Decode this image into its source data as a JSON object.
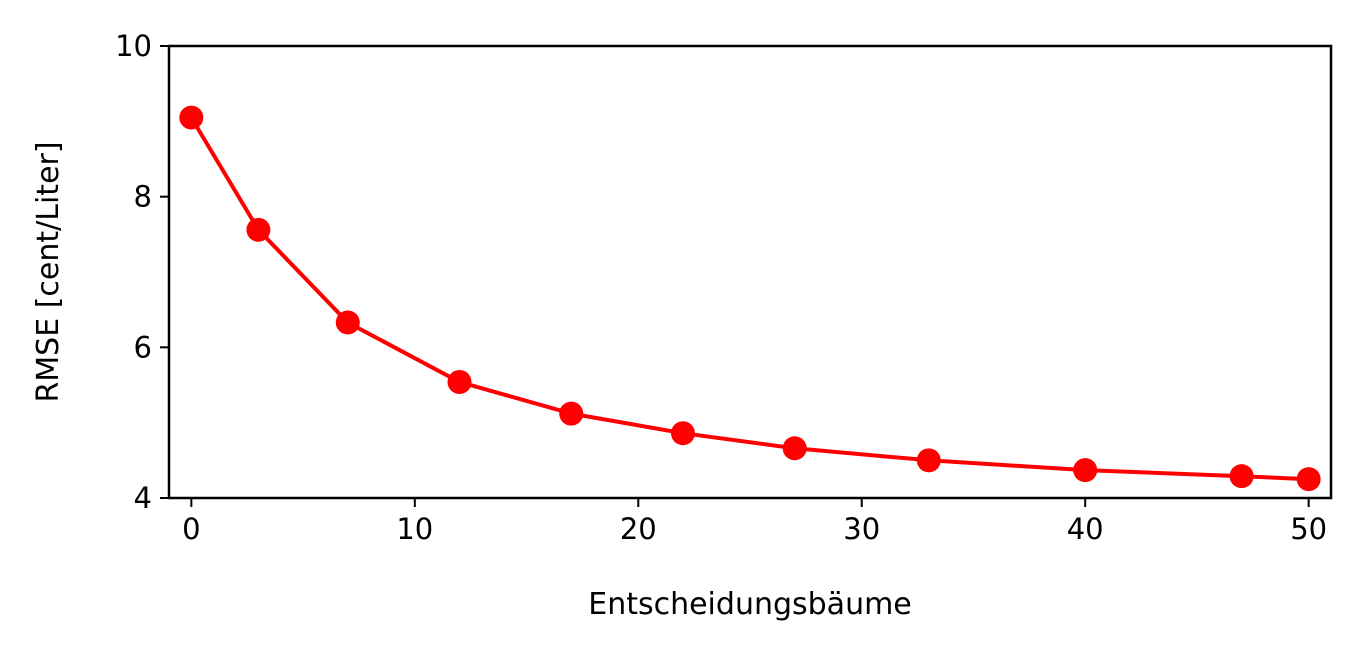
{
  "chart_data": {
    "type": "line",
    "title": "",
    "xlabel": "Entscheidungsbäume",
    "ylabel": "RMSE [cent/Liter]",
    "xlim": [
      -1,
      51
    ],
    "ylim": [
      4,
      10
    ],
    "xticks": [
      0,
      10,
      20,
      30,
      40,
      50
    ],
    "yticks": [
      4,
      6,
      8,
      10
    ],
    "grid": false,
    "legend": "none",
    "series": [
      {
        "color": "#ff0000",
        "marker": "circle",
        "x": [
          0,
          3,
          7,
          12,
          17,
          22,
          27,
          33,
          40,
          47,
          50
        ],
        "y": [
          9.05,
          7.56,
          6.33,
          5.54,
          5.12,
          4.86,
          4.66,
          4.5,
          4.37,
          4.29,
          4.25
        ]
      }
    ]
  }
}
